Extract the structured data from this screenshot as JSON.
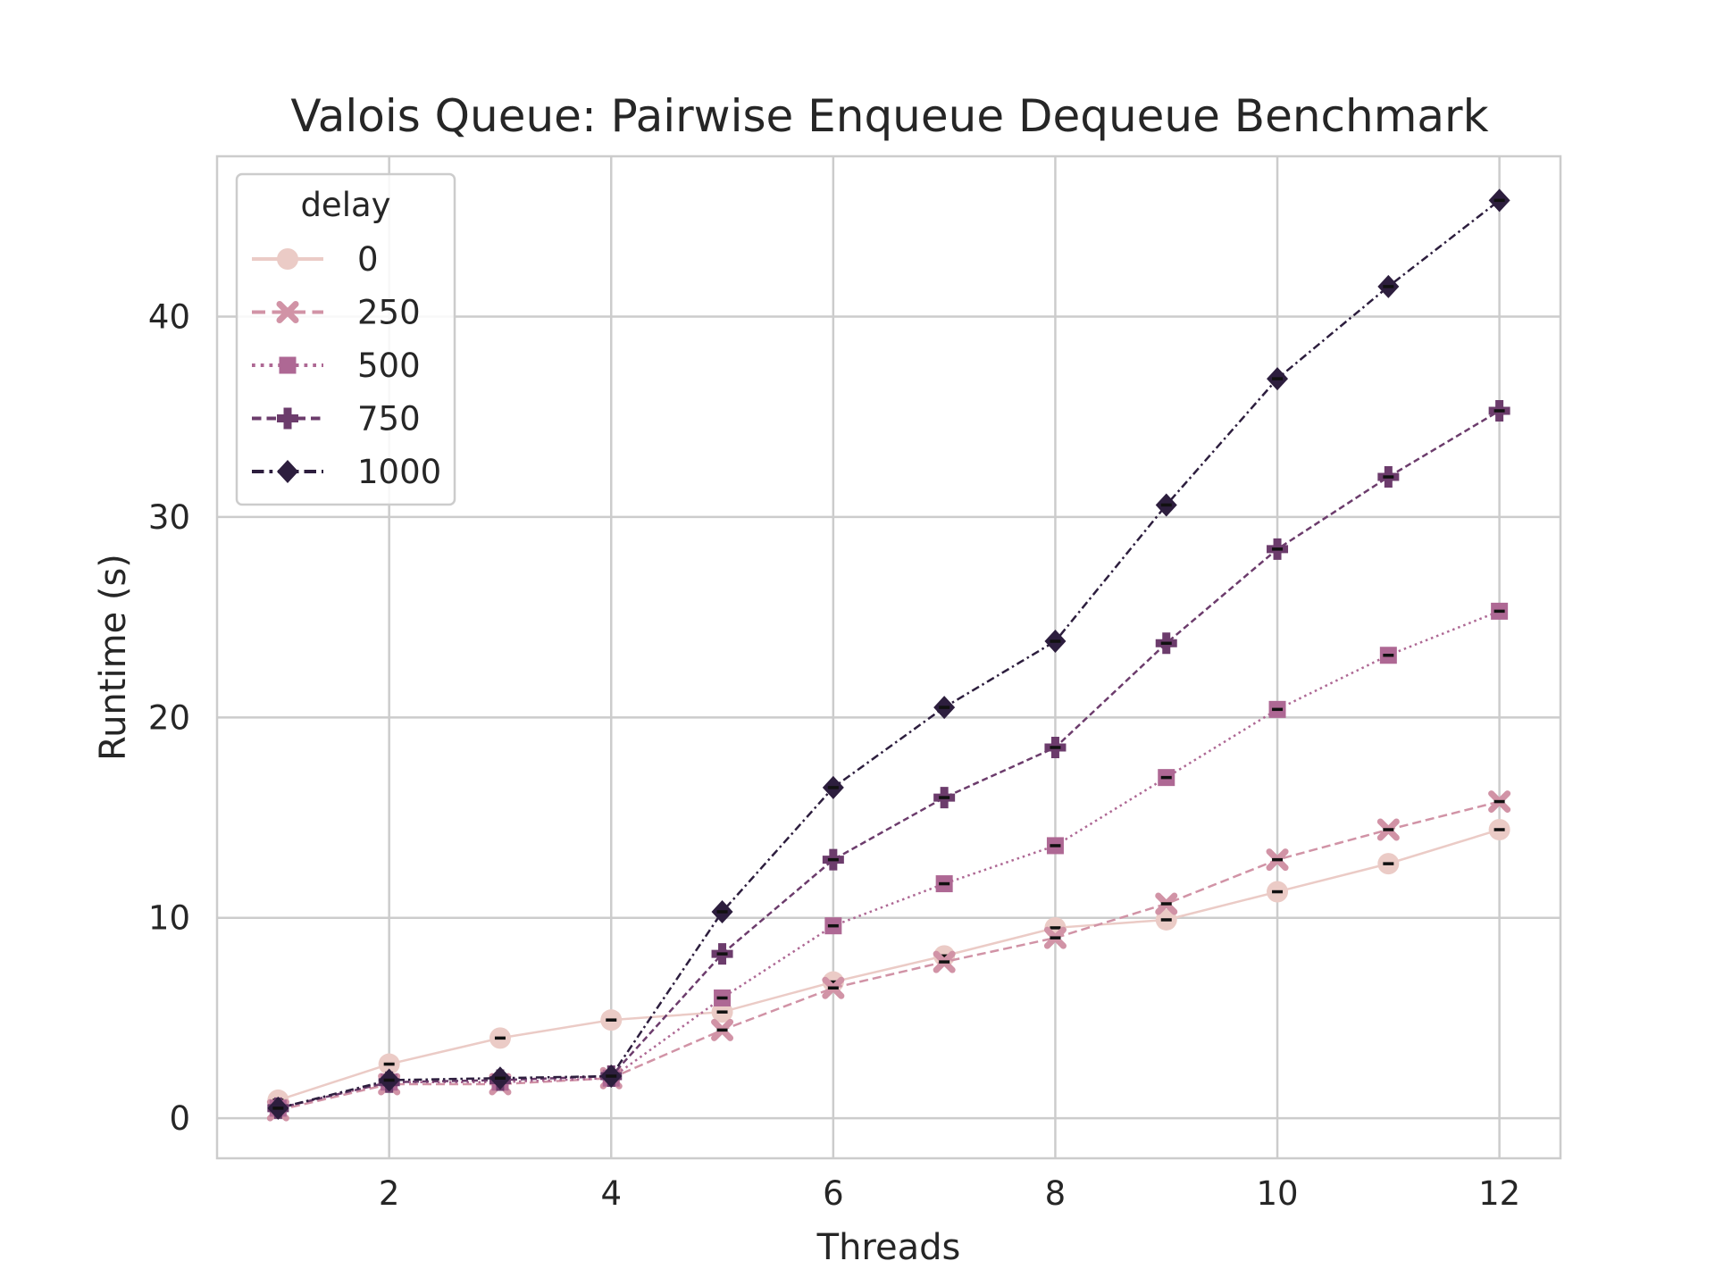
{
  "chart_data": {
    "type": "line",
    "title": "Valois Queue: Pairwise Enqueue Dequeue Benchmark",
    "xlabel": "Threads",
    "ylabel": "Runtime (s)",
    "xlim": [
      0.45,
      12.55
    ],
    "ylim": [
      -2,
      48
    ],
    "xticks": [
      2,
      4,
      6,
      8,
      10,
      12
    ],
    "yticks": [
      0,
      10,
      20,
      30,
      40
    ],
    "grid": true,
    "legend": {
      "title": "delay",
      "placement": "top-left"
    },
    "x": [
      1,
      2,
      3,
      4,
      5,
      6,
      7,
      8,
      9,
      10,
      11,
      12
    ],
    "series": [
      {
        "name": "0",
        "color": "#ebcbc6",
        "marker": "circle",
        "dash": "solid",
        "values": [
          0.9,
          2.7,
          4.0,
          4.9,
          5.3,
          6.8,
          8.1,
          9.5,
          9.9,
          11.3,
          12.7,
          14.4
        ]
      },
      {
        "name": "250",
        "color": "#d193a6",
        "marker": "x",
        "dash": "dashed",
        "values": [
          0.4,
          1.7,
          1.7,
          2.0,
          4.4,
          6.5,
          7.8,
          9.0,
          10.7,
          12.9,
          14.4,
          15.8
        ]
      },
      {
        "name": "500",
        "color": "#ae6894",
        "marker": "square",
        "dash": "dotted",
        "values": [
          0.5,
          1.8,
          1.8,
          2.0,
          6.0,
          9.6,
          11.7,
          13.6,
          17.0,
          20.4,
          23.1,
          25.3
        ]
      },
      {
        "name": "750",
        "color": "#6c3c6c",
        "marker": "plus",
        "dash": "dashdense",
        "values": [
          0.5,
          1.8,
          1.9,
          2.1,
          8.2,
          12.9,
          16.0,
          18.5,
          23.7,
          28.4,
          32.0,
          35.3
        ]
      },
      {
        "name": "1000",
        "color": "#2d1e3e",
        "marker": "diamond",
        "dash": "dashdot",
        "values": [
          0.5,
          1.9,
          2.0,
          2.1,
          10.3,
          16.5,
          20.5,
          23.8,
          30.6,
          36.9,
          41.5,
          45.8
        ]
      }
    ]
  }
}
